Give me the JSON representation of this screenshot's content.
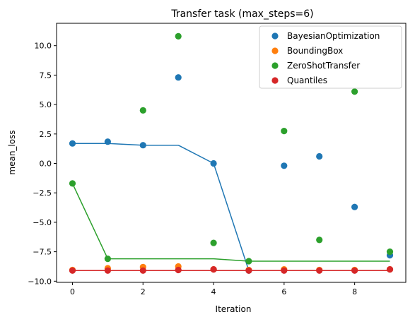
{
  "chart_data": {
    "type": "scatter",
    "title": "Transfer task (max_steps=6)",
    "xlabel": "Iteration",
    "ylabel": "mean_loss",
    "xlim": [
      -0.45,
      9.45
    ],
    "ylim": [
      -10.1,
      11.9
    ],
    "xticks": [
      0,
      2,
      4,
      6,
      8
    ],
    "xtick_labels": [
      "0",
      "2",
      "4",
      "6",
      "8"
    ],
    "yticks": [
      -10.0,
      -7.5,
      -5.0,
      -2.5,
      0.0,
      2.5,
      5.0,
      7.5,
      10.0
    ],
    "ytick_labels": [
      "−10.0",
      "−7.5",
      "−5.0",
      "−2.5",
      "0.0",
      "2.5",
      "5.0",
      "7.5",
      "10.0"
    ],
    "grid": false,
    "legend_position": "top-right",
    "series": [
      {
        "name": "BayesianOptimization",
        "color": "#1f77b4",
        "x": [
          0,
          1,
          2,
          3,
          4,
          5,
          6,
          7,
          8,
          9
        ],
        "y": [
          1.7,
          1.85,
          1.55,
          7.3,
          0.0,
          -9.1,
          -0.2,
          0.6,
          -3.7,
          -7.8
        ],
        "line_x": [
          0,
          1,
          2,
          3,
          4,
          5,
          6,
          7,
          8,
          9
        ],
        "line_y": [
          1.7,
          1.7,
          1.55,
          1.55,
          0.0,
          -9.1,
          -9.1,
          -9.1,
          -9.1,
          -9.1
        ]
      },
      {
        "name": "BoundingBox",
        "color": "#ff7f0e",
        "x": [
          0,
          1,
          2,
          3,
          4,
          5,
          6,
          7,
          8,
          9
        ],
        "y": [
          -9.05,
          -8.9,
          -8.8,
          -8.75,
          -9.0,
          -9.05,
          -9.0,
          -9.05,
          -9.05,
          -9.0
        ],
        "line_x": [],
        "line_y": []
      },
      {
        "name": "ZeroShotTransfer",
        "color": "#2ca02c",
        "x": [
          0,
          1,
          2,
          3,
          4,
          5,
          6,
          7,
          8,
          9
        ],
        "y": [
          -1.7,
          -8.1,
          4.5,
          10.8,
          -6.75,
          -8.3,
          2.75,
          -6.5,
          6.1,
          -7.5
        ],
        "line_x": [
          0,
          1,
          2,
          3,
          4,
          5,
          6,
          7,
          8,
          9
        ],
        "line_y": [
          -1.7,
          -8.1,
          -8.1,
          -8.1,
          -8.1,
          -8.3,
          -8.3,
          -8.3,
          -8.3,
          -8.3
        ]
      },
      {
        "name": "Quantiles",
        "color": "#d62728",
        "x": [
          0,
          1,
          2,
          3,
          4,
          5,
          6,
          7,
          8,
          9
        ],
        "y": [
          -9.1,
          -9.1,
          -9.1,
          -9.05,
          -9.0,
          -9.1,
          -9.1,
          -9.1,
          -9.1,
          -9.0
        ],
        "line_x": [
          0,
          1,
          2,
          3,
          4,
          5,
          6,
          7,
          8,
          9
        ],
        "line_y": [
          -9.1,
          -9.1,
          -9.1,
          -9.1,
          -9.1,
          -9.1,
          -9.1,
          -9.1,
          -9.1,
          -9.1
        ]
      }
    ]
  }
}
